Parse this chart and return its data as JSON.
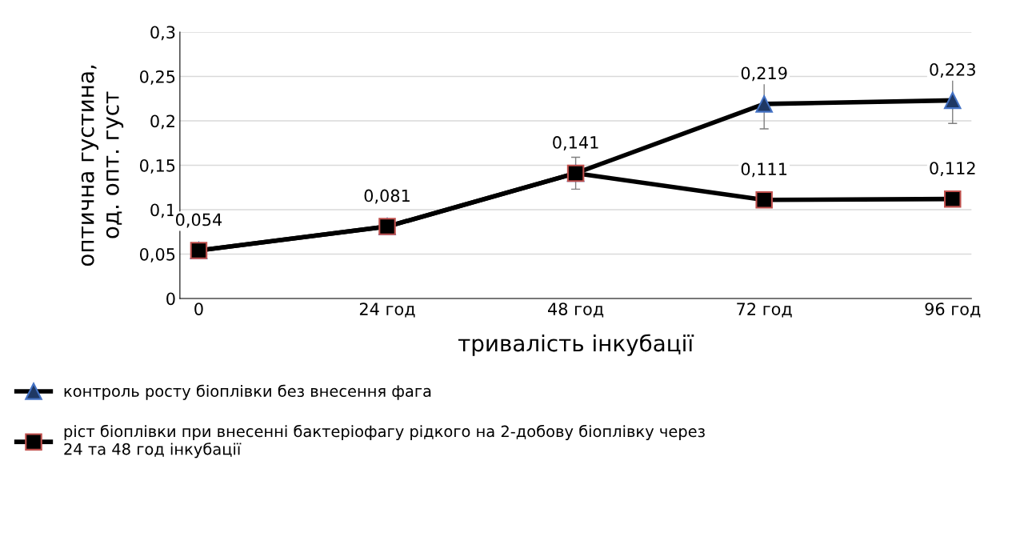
{
  "chart_data": {
    "type": "line",
    "xlabel": "тривалість інкубації",
    "ylabel": "оптична густина,\nод. опт. густ",
    "categories": [
      "0",
      "24 год",
      "48 год",
      "72 год",
      "96 год"
    ],
    "series": [
      {
        "name": "контроль росту біоплівки без внесення фага",
        "color": "#1f3864",
        "marker": "triangle",
        "values": [
          0.054,
          0.081,
          0.141,
          0.219,
          0.223
        ],
        "errors": [
          null,
          null,
          0.018,
          0.028,
          0.026
        ],
        "value_labels": [
          "0,054",
          "0,081",
          "0,141",
          "0,219",
          "0,223"
        ]
      },
      {
        "name": "ріст біоплівки при внесенні бактеріофагу рідкого на 2-добову біоплівку через\n24 та 48 год інкубації",
        "color": "#000000",
        "marker": "square",
        "values": [
          0.054,
          0.081,
          0.141,
          0.111,
          0.112
        ],
        "value_labels": [
          null,
          null,
          null,
          "0,111",
          "0,112"
        ]
      }
    ],
    "ylim": [
      0,
      0.3
    ],
    "yticks": [
      {
        "value": 0,
        "label": "0"
      },
      {
        "value": 0.05,
        "label": "0,05"
      },
      {
        "value": 0.1,
        "label": "0,1"
      },
      {
        "value": 0.15,
        "label": "0,15"
      },
      {
        "value": 0.2,
        "label": "0,2"
      },
      {
        "value": 0.25,
        "label": "0,25"
      },
      {
        "value": 0.3,
        "label": "0,3"
      }
    ],
    "grid": "y",
    "legend": "bottom",
    "line_style": "solid"
  }
}
